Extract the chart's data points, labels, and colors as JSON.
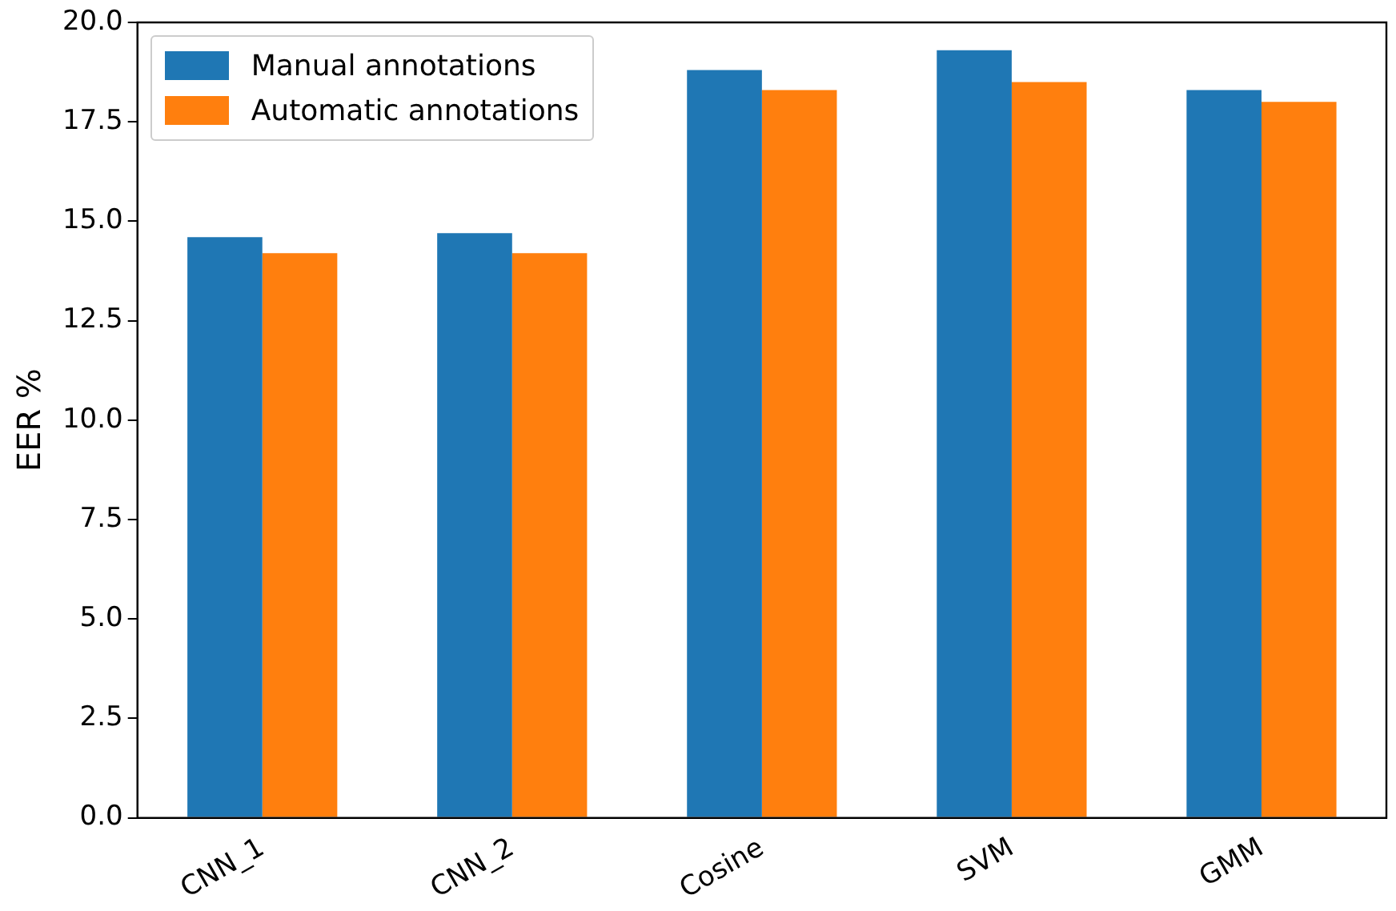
{
  "chart_data": {
    "type": "bar",
    "ylabel": "EER %",
    "categories": [
      "CNN_1",
      "CNN_2",
      "Cosine",
      "SVM",
      "GMM"
    ],
    "series": [
      {
        "name": "Manual annotations",
        "color": "#1f77b4",
        "values": [
          14.6,
          14.7,
          18.8,
          19.3,
          18.3
        ]
      },
      {
        "name": "Automatic annotations",
        "color": "#ff7f0e",
        "values": [
          14.2,
          14.2,
          18.3,
          18.5,
          18.0
        ]
      }
    ],
    "ylim": [
      0,
      20
    ],
    "yticks": [
      {
        "value": 0,
        "label": "0.0"
      },
      {
        "value": 2.5,
        "label": "2.5"
      },
      {
        "value": 5,
        "label": "5.0"
      },
      {
        "value": 7.5,
        "label": "7.5"
      },
      {
        "value": 10,
        "label": "10.0"
      },
      {
        "value": 12.5,
        "label": "12.5"
      },
      {
        "value": 15,
        "label": "15.0"
      },
      {
        "value": 17.5,
        "label": "17.5"
      },
      {
        "value": 20,
        "label": "20.0"
      }
    ],
    "grid": false,
    "legend": "top left"
  }
}
